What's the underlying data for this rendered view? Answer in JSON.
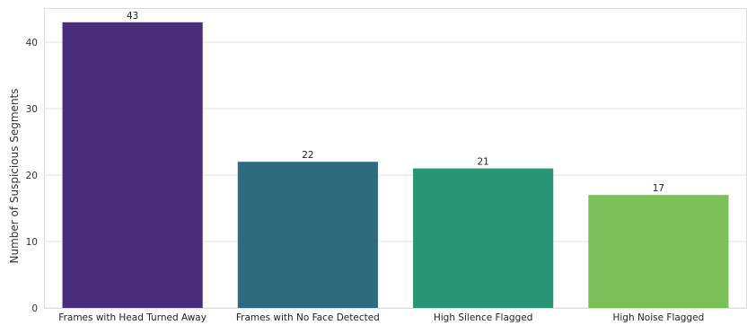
{
  "chart_data": {
    "type": "bar",
    "title": "",
    "xlabel": "",
    "ylabel": "Number of Suspicious Segments",
    "categories": [
      "Frames with Head Turned Away",
      "Frames with No Face Detected",
      "High Silence Flagged",
      "High Noise Flagged"
    ],
    "values": [
      43,
      22,
      21,
      17
    ],
    "data_labels": [
      "43",
      "22",
      "21",
      "17"
    ],
    "colors": [
      "#472d7b",
      "#2f6b7f",
      "#2a9574",
      "#7bc157"
    ],
    "ylim": [
      0,
      45
    ],
    "yticks": [
      0,
      10,
      20,
      30,
      40
    ],
    "grid": true,
    "legend": "none"
  }
}
